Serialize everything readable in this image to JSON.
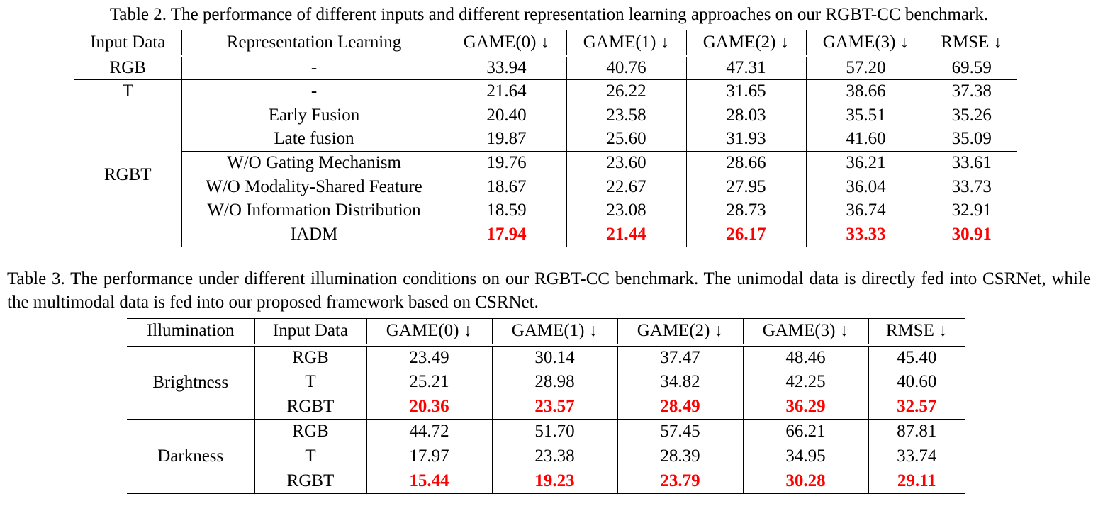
{
  "table2": {
    "caption": "Table 2. The performance of different inputs and different representation learning approaches on our RGBT-CC benchmark.",
    "headers": [
      "Input Data",
      "Representation Learning",
      "GAME(0) ↓",
      "GAME(1) ↓",
      "GAME(2) ↓",
      "GAME(3) ↓",
      "RMSE ↓"
    ],
    "groups": [
      {
        "input": "RGB",
        "rows": [
          {
            "method": "-",
            "values": [
              "33.94",
              "40.76",
              "47.31",
              "57.20",
              "69.59"
            ]
          }
        ]
      },
      {
        "input": "T",
        "rows": [
          {
            "method": "-",
            "values": [
              "21.64",
              "26.22",
              "31.65",
              "38.66",
              "37.38"
            ]
          }
        ]
      },
      {
        "input": "RGBT",
        "rows": [
          {
            "method": "Early Fusion",
            "values": [
              "20.40",
              "23.58",
              "28.03",
              "35.51",
              "35.26"
            ]
          },
          {
            "method": "Late fusion",
            "values": [
              "19.87",
              "25.60",
              "31.93",
              "41.60",
              "35.09"
            ]
          },
          {
            "method": "W/O Gating Mechanism",
            "values": [
              "19.76",
              "23.60",
              "28.66",
              "36.21",
              "33.61"
            ]
          },
          {
            "method": "W/O Modality-Shared Feature",
            "values": [
              "18.67",
              "22.67",
              "27.95",
              "36.04",
              "33.73"
            ]
          },
          {
            "method": "W/O Information Distribution",
            "values": [
              "18.59",
              "23.08",
              "28.73",
              "36.74",
              "32.91"
            ]
          },
          {
            "method": "IADM",
            "values": [
              "17.94",
              "21.44",
              "26.17",
              "33.33",
              "30.91"
            ],
            "best": true
          }
        ]
      }
    ]
  },
  "table3": {
    "caption": "Table 3. The performance under different illumination conditions on our RGBT-CC benchmark.  The unimodal data is directly fed into CSRNet, while the multimodal data is fed into our proposed framework based on CSRNet.",
    "headers": [
      "Illumination",
      "Input Data",
      "GAME(0) ↓",
      "GAME(1) ↓",
      "GAME(2) ↓",
      "GAME(3) ↓",
      "RMSE ↓"
    ],
    "groups": [
      {
        "illumination": "Brightness",
        "rows": [
          {
            "input": "RGB",
            "values": [
              "23.49",
              "30.14",
              "37.47",
              "48.46",
              "45.40"
            ]
          },
          {
            "input": "T",
            "values": [
              "25.21",
              "28.98",
              "34.82",
              "42.25",
              "40.60"
            ]
          },
          {
            "input": "RGBT",
            "values": [
              "20.36",
              "23.57",
              "28.49",
              "36.29",
              "32.57"
            ],
            "best": true
          }
        ]
      },
      {
        "illumination": "Darkness",
        "rows": [
          {
            "input": "RGB",
            "values": [
              "44.72",
              "51.70",
              "57.45",
              "66.21",
              "87.81"
            ]
          },
          {
            "input": "T",
            "values": [
              "17.97",
              "23.38",
              "28.39",
              "34.95",
              "33.74"
            ]
          },
          {
            "input": "RGBT",
            "values": [
              "15.44",
              "19.23",
              "23.79",
              "30.28",
              "29.11"
            ],
            "best": true
          }
        ]
      }
    ]
  },
  "colors": {
    "best": "#ff0000",
    "text": "#000000",
    "background": "#ffffff"
  }
}
